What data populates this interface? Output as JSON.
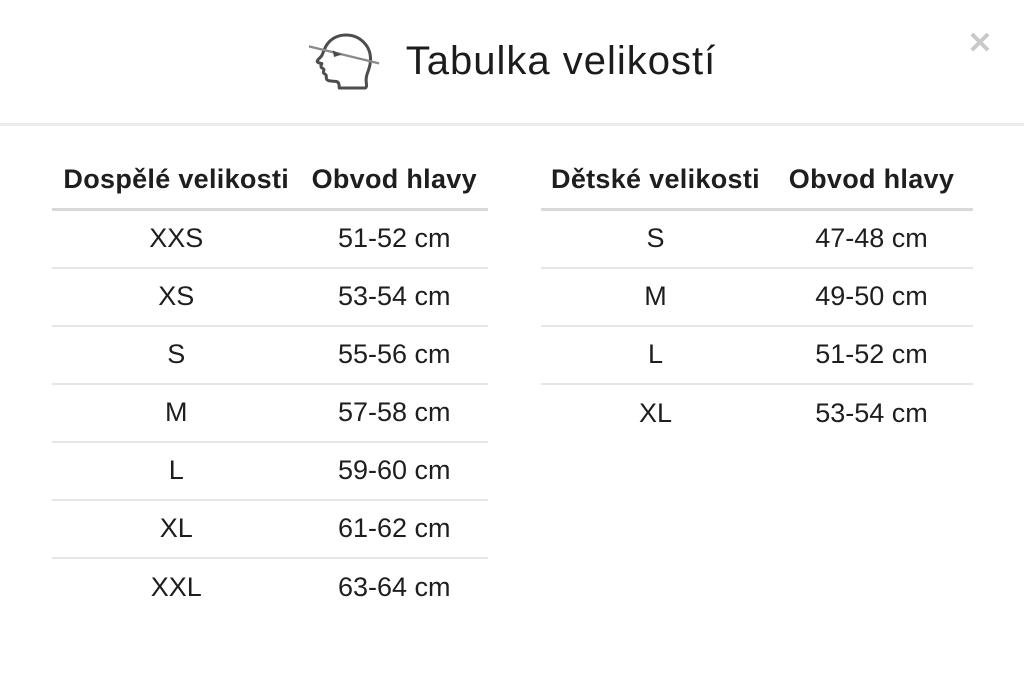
{
  "modal": {
    "title": "Tabulka velikostí",
    "close_label": "✕"
  },
  "icons": {
    "header_icon": "head-measurement-icon",
    "close_icon": "close-icon"
  },
  "colors": {
    "text": "#1e1e1e",
    "divider": "#ececec",
    "table_rule": "#e6e6e6",
    "close_icon": "#c9c9c9",
    "icon_stroke": "#4d4d4d"
  },
  "tables": {
    "adult": {
      "headers": [
        "Dospělé velikosti",
        "Obvod hlavy"
      ],
      "rows": [
        [
          "XXS",
          "51-52 cm"
        ],
        [
          "XS",
          "53-54 cm"
        ],
        [
          "S",
          "55-56 cm"
        ],
        [
          "M",
          "57-58 cm"
        ],
        [
          "L",
          "59-60 cm"
        ],
        [
          "XL",
          "61-62 cm"
        ],
        [
          "XXL",
          "63-64 cm"
        ]
      ]
    },
    "children": {
      "headers": [
        "Dětské velikosti",
        "Obvod hlavy"
      ],
      "rows": [
        [
          "S",
          "47-48 cm"
        ],
        [
          "M",
          "49-50 cm"
        ],
        [
          "L",
          "51-52 cm"
        ],
        [
          "XL",
          "53-54 cm"
        ]
      ]
    }
  }
}
